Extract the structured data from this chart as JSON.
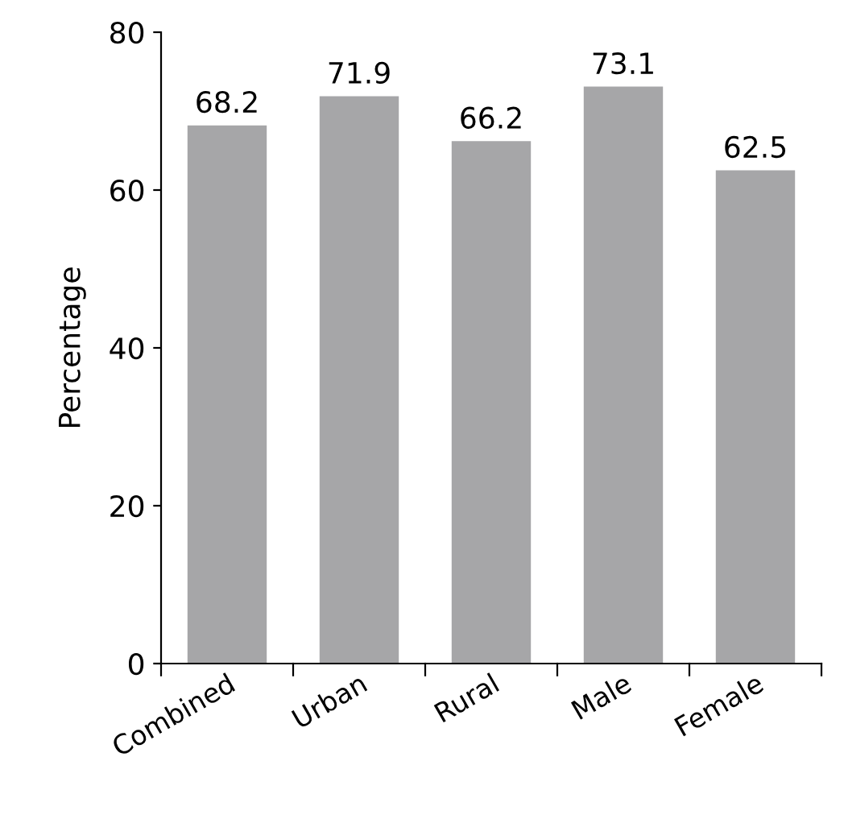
{
  "chart_data": {
    "type": "bar",
    "ylabel": "Percentage",
    "categories": [
      "Combined",
      "Urban",
      "Rural",
      "Male",
      "Female"
    ],
    "values": [
      68.2,
      71.9,
      66.2,
      73.1,
      62.5
    ],
    "color": "#a6a6a8",
    "ylim": [
      0,
      80
    ],
    "yticks": [
      0,
      20,
      40,
      60,
      80
    ],
    "grid": false,
    "data_labels": true
  }
}
